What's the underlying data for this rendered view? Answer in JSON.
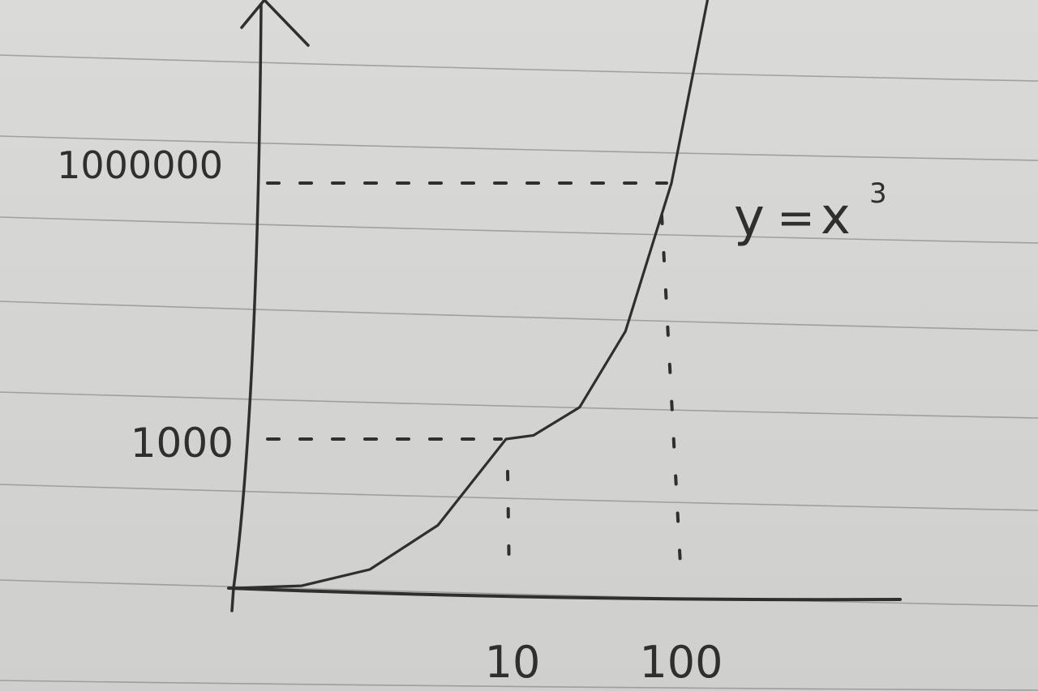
{
  "chart_data": {
    "type": "line",
    "title": "",
    "equation": {
      "lhs": "y",
      "op": "=",
      "base": "x",
      "exponent": "3"
    },
    "x_axis": {
      "ticks": [
        {
          "value": 10,
          "label": "10"
        },
        {
          "value": 100,
          "label": "100"
        }
      ]
    },
    "y_axis": {
      "ticks": [
        {
          "value": 1000,
          "label": "1000"
        },
        {
          "value": 1000000,
          "label": "1000000"
        }
      ]
    },
    "series": [
      {
        "x": [
          0,
          2.5,
          5,
          7.5,
          10,
          25,
          50,
          75,
          100,
          120
        ],
        "y": [
          0,
          15.625,
          125,
          421.875,
          1000,
          15625,
          125000,
          421875,
          1000000,
          1728000
        ]
      }
    ],
    "reference_points": [
      {
        "x": 10,
        "y": 1000
      },
      {
        "x": 100,
        "y": 1000000
      }
    ],
    "grid": false,
    "note_paper": true,
    "colors": {
      "ink": "#2f2f2f",
      "paper": "#d6d6d4",
      "rule": "#8e8e8c"
    }
  }
}
